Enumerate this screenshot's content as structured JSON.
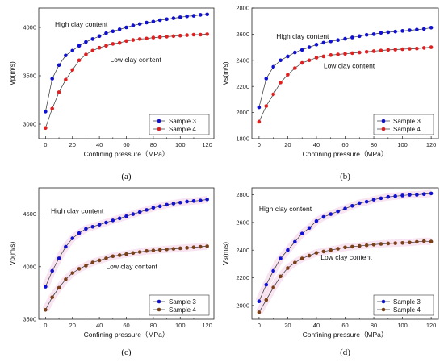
{
  "chart_data": [
    {
      "type": "line",
      "caption": "(a)",
      "xlabel": "Confining pressure（MPa）",
      "ylabel": "Vp(m/s)",
      "xlim": [
        -5,
        125
      ],
      "ylim": [
        2850,
        4200
      ],
      "xticks": [
        0,
        20,
        40,
        60,
        80,
        100,
        120
      ],
      "yticks": [
        3000,
        3500,
        4000
      ],
      "legend_position": "bottom-right",
      "annotations": [
        {
          "text": "High clay content",
          "x": 7,
          "y": 4010
        },
        {
          "text": "Low clay content",
          "x": 48,
          "y": 3640
        }
      ],
      "x": [
        0,
        5,
        10,
        15,
        20,
        25,
        30,
        35,
        40,
        45,
        50,
        55,
        60,
        65,
        70,
        75,
        80,
        85,
        90,
        95,
        100,
        105,
        110,
        115,
        120
      ],
      "series": [
        {
          "name": "Sample 3",
          "color": "#1010d0",
          "values": [
            3130,
            3470,
            3610,
            3710,
            3760,
            3810,
            3850,
            3880,
            3910,
            3940,
            3960,
            3980,
            4000,
            4020,
            4035,
            4050,
            4060,
            4075,
            4085,
            4095,
            4105,
            4115,
            4120,
            4130,
            4135
          ]
        },
        {
          "name": "Sample 4",
          "color": "#e02020",
          "values": [
            2960,
            3160,
            3330,
            3460,
            3560,
            3660,
            3720,
            3760,
            3790,
            3810,
            3830,
            3840,
            3860,
            3870,
            3880,
            3885,
            3895,
            3900,
            3905,
            3910,
            3915,
            3920,
            3925,
            3925,
            3930
          ]
        }
      ]
    },
    {
      "type": "line",
      "caption": "(b)",
      "xlabel": "Confining pressure（MPa）",
      "ylabel": "Vs(m/s)",
      "xlim": [
        -5,
        125
      ],
      "ylim": [
        1800,
        2800
      ],
      "xticks": [
        0,
        20,
        40,
        60,
        80,
        100,
        120
      ],
      "yticks": [
        1800,
        2000,
        2200,
        2400,
        2600,
        2800
      ],
      "legend_position": "bottom-right",
      "annotations": [
        {
          "text": "High clay content",
          "x": 12,
          "y": 2565
        },
        {
          "text": "Low clay content",
          "x": 45,
          "y": 2340
        }
      ],
      "x": [
        0,
        5,
        10,
        15,
        20,
        25,
        30,
        35,
        40,
        45,
        50,
        55,
        60,
        65,
        70,
        75,
        80,
        85,
        90,
        95,
        100,
        105,
        110,
        115,
        120
      ],
      "series": [
        {
          "name": "Sample 3",
          "color": "#1010d0",
          "values": [
            2040,
            2260,
            2350,
            2400,
            2430,
            2460,
            2480,
            2500,
            2520,
            2535,
            2545,
            2555,
            2565,
            2575,
            2585,
            2595,
            2600,
            2610,
            2615,
            2620,
            2625,
            2630,
            2635,
            2640,
            2650
          ]
        },
        {
          "name": "Sample 4",
          "color": "#e02020",
          "values": [
            1930,
            2050,
            2140,
            2230,
            2290,
            2340,
            2380,
            2400,
            2420,
            2430,
            2440,
            2445,
            2450,
            2455,
            2460,
            2465,
            2470,
            2475,
            2480,
            2482,
            2485,
            2488,
            2490,
            2495,
            2500
          ]
        }
      ]
    },
    {
      "type": "line",
      "caption": "(c)",
      "xlabel": "Confining pressure（MPa）",
      "ylabel": "Vp(m/s)",
      "xlim": [
        -5,
        125
      ],
      "ylim": [
        3500,
        4750
      ],
      "xticks": [
        0,
        20,
        40,
        60,
        80,
        100,
        120
      ],
      "yticks": [
        3500,
        4000,
        4500
      ],
      "legend_position": "bottom-right",
      "annotations": [
        {
          "text": "High clay content",
          "x": 4,
          "y": 4510
        },
        {
          "text": "Low clay content",
          "x": 45,
          "y": 3980
        }
      ],
      "x": [
        0,
        5,
        10,
        15,
        20,
        25,
        30,
        35,
        40,
        45,
        50,
        55,
        60,
        65,
        70,
        75,
        80,
        85,
        90,
        95,
        100,
        105,
        110,
        115,
        120
      ],
      "series": [
        {
          "name": "Sample 3",
          "color": "#1010d0",
          "values": [
            3810,
            3960,
            4080,
            4190,
            4270,
            4320,
            4360,
            4380,
            4400,
            4420,
            4440,
            4460,
            4480,
            4500,
            4520,
            4540,
            4560,
            4575,
            4590,
            4600,
            4610,
            4620,
            4625,
            4630,
            4640
          ]
        },
        {
          "name": "Sample 4",
          "color": "#7a3f14",
          "values": [
            3590,
            3710,
            3800,
            3880,
            3940,
            3980,
            4010,
            4040,
            4060,
            4080,
            4100,
            4110,
            4120,
            4130,
            4140,
            4150,
            4155,
            4160,
            4165,
            4170,
            4175,
            4180,
            4185,
            4190,
            4195
          ]
        }
      ]
    },
    {
      "type": "line",
      "caption": "(d)",
      "xlabel": "Confining pressure（MPa）",
      "ylabel": "Vs(m/s)",
      "xlim": [
        -5,
        125
      ],
      "ylim": [
        1900,
        2850
      ],
      "xticks": [
        0,
        20,
        40,
        60,
        80,
        100,
        120
      ],
      "yticks": [
        2000,
        2200,
        2400,
        2600,
        2800
      ],
      "legend_position": "bottom-right",
      "annotations": [
        {
          "text": "High clay content",
          "x": 0,
          "y": 2680
        },
        {
          "text": "Low clay content",
          "x": 43,
          "y": 2330
        }
      ],
      "x": [
        0,
        5,
        10,
        15,
        20,
        25,
        30,
        35,
        40,
        45,
        50,
        55,
        60,
        65,
        70,
        75,
        80,
        85,
        90,
        95,
        100,
        105,
        110,
        115,
        120
      ],
      "series": [
        {
          "name": "Sample 3",
          "color": "#1010d0",
          "values": [
            2030,
            2150,
            2250,
            2340,
            2400,
            2460,
            2520,
            2560,
            2610,
            2640,
            2660,
            2680,
            2700,
            2720,
            2740,
            2750,
            2765,
            2775,
            2785,
            2790,
            2795,
            2800,
            2800,
            2805,
            2810
          ]
        },
        {
          "name": "Sample 4",
          "color": "#7a3f14",
          "values": [
            1950,
            2040,
            2130,
            2210,
            2270,
            2310,
            2340,
            2360,
            2380,
            2390,
            2400,
            2410,
            2420,
            2425,
            2430,
            2435,
            2440,
            2445,
            2448,
            2450,
            2452,
            2455,
            2460,
            2465,
            2462
          ]
        }
      ]
    }
  ]
}
